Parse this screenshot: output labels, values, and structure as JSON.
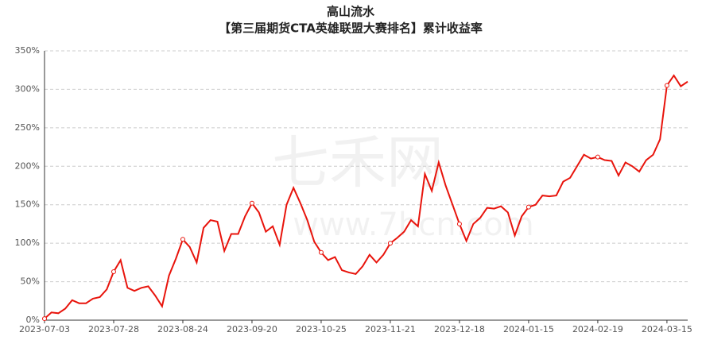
{
  "chart_data": {
    "type": "line",
    "title": "高山流水",
    "subtitle": "【第三届期货CTA英雄联盟大赛排名】累计收益率",
    "watermark": [
      "七禾网",
      "www.7hcn.com"
    ],
    "categories": [
      "2023-07-03",
      null,
      null,
      null,
      null,
      null,
      null,
      null,
      null,
      null,
      "2023-07-28",
      null,
      null,
      null,
      null,
      null,
      null,
      null,
      null,
      null,
      "2023-08-24",
      null,
      null,
      null,
      null,
      null,
      null,
      null,
      null,
      null,
      "2023-09-20",
      null,
      null,
      null,
      null,
      null,
      null,
      null,
      null,
      null,
      "2023-10-25",
      null,
      null,
      null,
      null,
      null,
      null,
      null,
      null,
      null,
      "2023-11-21",
      null,
      null,
      null,
      null,
      null,
      null,
      null,
      null,
      null,
      "2023-12-18",
      null,
      null,
      null,
      null,
      null,
      null,
      null,
      null,
      null,
      "2024-01-15",
      null,
      null,
      null,
      null,
      null,
      null,
      null,
      null,
      null,
      "2024-02-19",
      null,
      null,
      null,
      null,
      null,
      null,
      null,
      null,
      null,
      "2024-03-15",
      null,
      null,
      null
    ],
    "series": [
      {
        "name": "累计收益率",
        "color": "#e8140c",
        "values": [
          2,
          10,
          9,
          15,
          26,
          22,
          22,
          28,
          30,
          40,
          63,
          78,
          42,
          38,
          42,
          44,
          32,
          18,
          58,
          80,
          105,
          95,
          75,
          120,
          130,
          128,
          90,
          112,
          112,
          135,
          152,
          140,
          115,
          122,
          98,
          150,
          172,
          152,
          130,
          102,
          88,
          78,
          82,
          65,
          62,
          60,
          70,
          85,
          75,
          85,
          100,
          107,
          115,
          130,
          122,
          190,
          168,
          205,
          175,
          150,
          125,
          103,
          125,
          133,
          146,
          145,
          148,
          140,
          110,
          135,
          147,
          150,
          162,
          161,
          162,
          180,
          185,
          200,
          215,
          210,
          212,
          208,
          207,
          188,
          205,
          200,
          193,
          208,
          215,
          235,
          305,
          318,
          304,
          310
        ]
      }
    ],
    "ylim": [
      0,
      350
    ],
    "yticks": [
      {
        "value": 0,
        "label": "0%"
      },
      {
        "value": 50,
        "label": "50%"
      },
      {
        "value": 100,
        "label": "100%"
      },
      {
        "value": 150,
        "label": "150%"
      },
      {
        "value": 200,
        "label": "200%"
      },
      {
        "value": 250,
        "label": "250%"
      },
      {
        "value": 300,
        "label": "300%"
      },
      {
        "value": 350,
        "label": "350%"
      }
    ],
    "grid": true
  }
}
